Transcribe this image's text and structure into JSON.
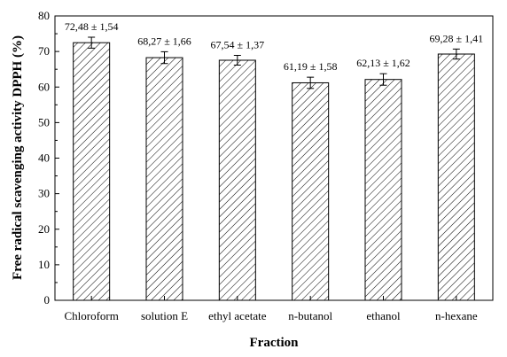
{
  "chart_data": {
    "type": "bar",
    "title": "",
    "xlabel": "Fraction",
    "ylabel": "Free radical scavenging activity DPPH (%)",
    "ylim": [
      0,
      80
    ],
    "yticks": [
      0,
      10,
      20,
      30,
      40,
      50,
      60,
      70,
      80
    ],
    "grid": false,
    "legend": "none",
    "bar_fill": "diagonal-hatch",
    "categories": [
      "Chloroform",
      "solution E",
      "ethyl acetate",
      "n-butanol",
      "ethanol",
      "n-hexane"
    ],
    "values": [
      72.48,
      68.27,
      67.54,
      61.19,
      62.13,
      69.28
    ],
    "errors": [
      1.54,
      1.66,
      1.37,
      1.58,
      1.62,
      1.41
    ],
    "data_labels": [
      "72,48 ± 1,54",
      "68,27 ± 1,66",
      "67,54 ± 1,37",
      "61,19 ± 1,58",
      "62,13 ± 1,62",
      "69,28 ± 1,41"
    ]
  }
}
